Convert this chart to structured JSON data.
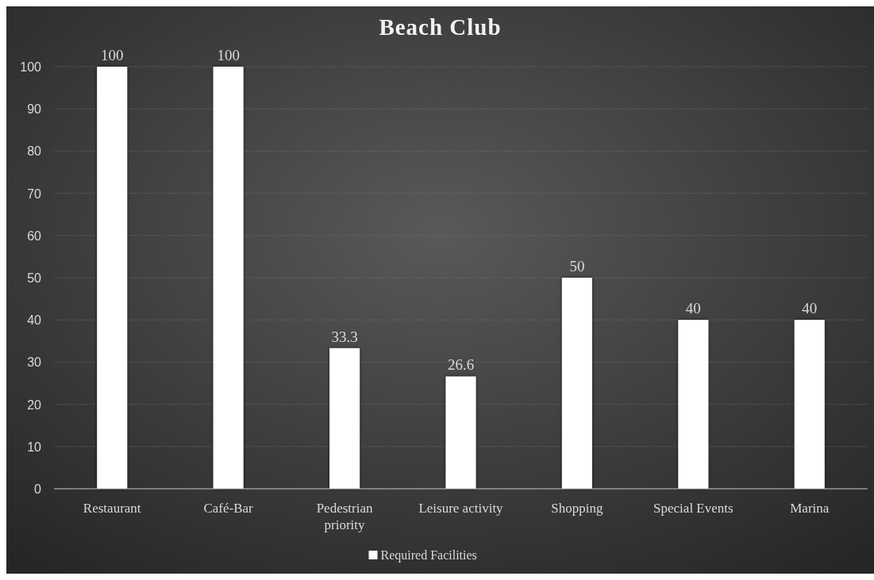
{
  "chart_data": {
    "type": "bar",
    "title": "Beach Club",
    "categories": [
      "Restaurant",
      "Café-Bar",
      "Pedestrian priority",
      "Leisure activity",
      "Shopping",
      "Special Events",
      "Marina"
    ],
    "series": [
      {
        "name": "Required Facilities",
        "color": "#ffffff",
        "values": [
          100,
          100,
          33.3,
          26.6,
          50,
          40,
          40
        ]
      }
    ],
    "ylim": [
      0,
      100
    ],
    "yticks": [
      0,
      10,
      20,
      30,
      40,
      50,
      60,
      70,
      80,
      90,
      100
    ],
    "grid": "y",
    "legend": "bottom",
    "data_labels": true
  }
}
